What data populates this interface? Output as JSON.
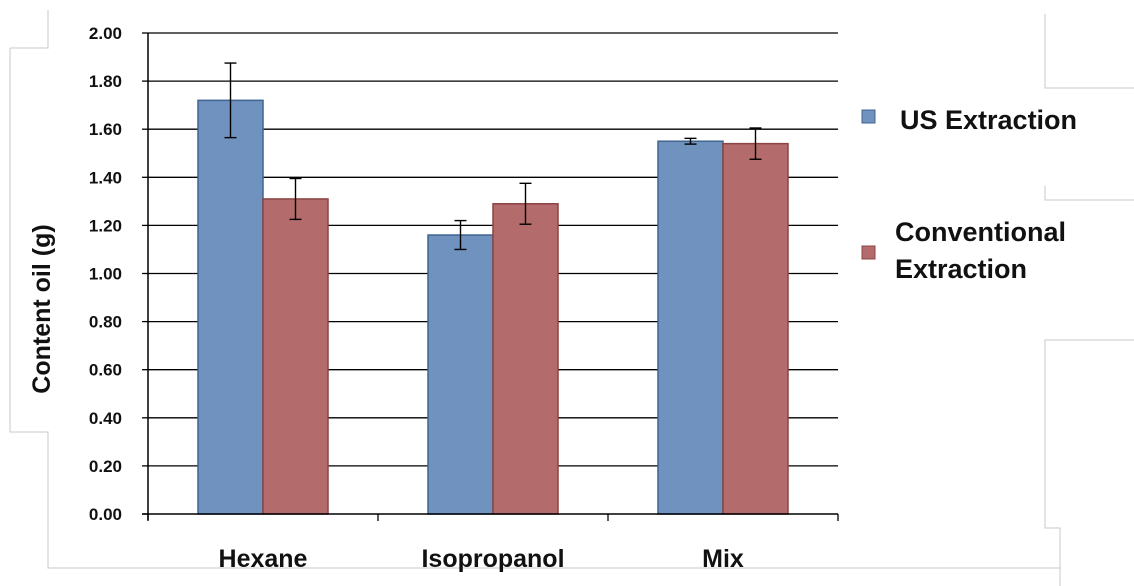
{
  "chart_data": {
    "type": "bar",
    "title": "",
    "xlabel": "",
    "ylabel": "Content oil (g)",
    "ylim": [
      0,
      2.0
    ],
    "yticks": [
      "0.00",
      "0.20",
      "0.40",
      "0.60",
      "0.80",
      "1.00",
      "1.20",
      "1.40",
      "1.60",
      "1.80",
      "2.00"
    ],
    "grid": true,
    "legend_position": "right",
    "categories": [
      "Hexane",
      "Isopropanol",
      "Mix"
    ],
    "series": [
      {
        "name": "US Extraction",
        "legend_lines": [
          "US Extraction"
        ],
        "color": "#6f92bf",
        "edge": "#3f6490",
        "values": [
          1.72,
          1.16,
          1.55
        ],
        "errors": [
          0.155,
          0.06,
          0.012
        ]
      },
      {
        "name": "Conventional Extraction",
        "legend_lines": [
          "Conventional",
          "Extraction"
        ],
        "color": "#b46b6b",
        "edge": "#8c4444",
        "values": [
          1.31,
          1.29,
          1.54
        ],
        "errors": [
          0.085,
          0.085,
          0.065
        ]
      }
    ]
  }
}
